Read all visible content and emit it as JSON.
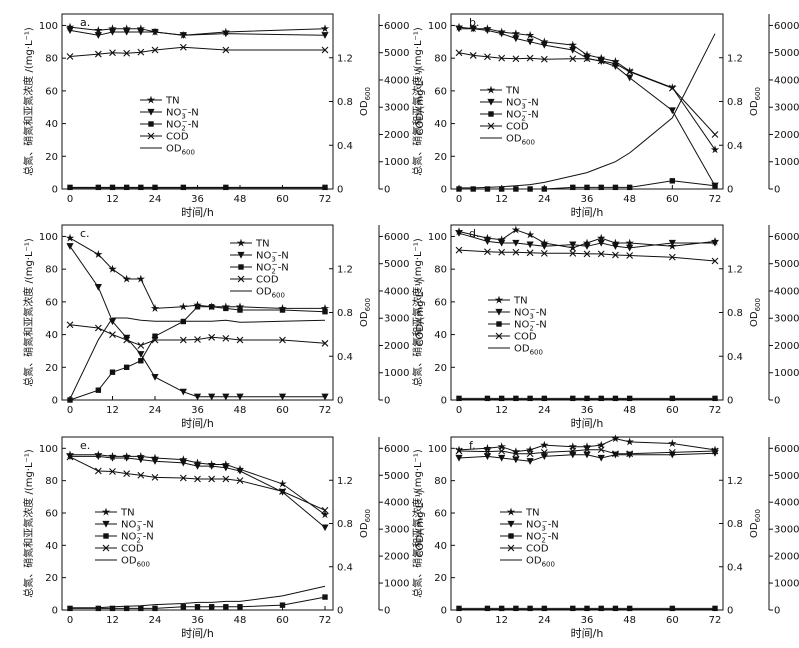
{
  "figure": {
    "shared": {
      "xlabel": "时间/h",
      "ylabel_left": "总氮、硝氮和亚氮浓度 /(mg·L⁻¹)",
      "ylabel_od": "OD600",
      "ylabel_cod": "COD/(mg·L⁻¹)",
      "x_ticks": [
        0,
        12,
        24,
        36,
        48,
        60,
        72
      ],
      "y_left_ticks": [
        0,
        20,
        40,
        60,
        80,
        100
      ],
      "y_od_ticks": [
        0,
        0.4,
        0.8,
        1.2
      ],
      "y_cod_ticks": [
        0,
        1000,
        2000,
        3000,
        4000,
        5000,
        6000
      ],
      "legend": [
        "TN",
        "NO3−-N",
        "NO2−-N",
        "COD",
        "OD600"
      ]
    },
    "colors": {
      "line": "#111111",
      "axis": "#111111",
      "background": "#ffffff"
    }
  },
  "chart_data": [
    {
      "panel": "a.",
      "type": "line",
      "xlim": [
        0,
        72
      ],
      "ylim": [
        0,
        100
      ],
      "od_lim": [
        0,
        1.5
      ],
      "cod_lim": [
        0,
        6000
      ],
      "series": [
        {
          "name": "TN",
          "axis": "left",
          "marker": "star",
          "x": [
            0,
            8,
            12,
            16,
            20,
            24,
            32,
            44,
            72
          ],
          "y": [
            99,
            97,
            98,
            98,
            98,
            96,
            94,
            96,
            98
          ]
        },
        {
          "name": "NO3−-N",
          "axis": "left",
          "marker": "tri-down",
          "x": [
            0,
            8,
            12,
            16,
            20,
            24,
            32,
            44,
            72
          ],
          "y": [
            97,
            94,
            96,
            96,
            96,
            96,
            94,
            95,
            94
          ]
        },
        {
          "name": "NO2−-N",
          "axis": "left",
          "marker": "square",
          "x": [
            0,
            8,
            12,
            16,
            20,
            24,
            32,
            44,
            72
          ],
          "y": [
            1,
            1,
            1,
            1,
            1,
            1,
            1,
            1,
            1
          ]
        },
        {
          "name": "COD",
          "axis": "cod",
          "marker": "x",
          "x": [
            0,
            8,
            12,
            16,
            20,
            24,
            32,
            44,
            72
          ],
          "y": [
            4860,
            4950,
            5000,
            4980,
            5020,
            5100,
            5200,
            5100,
            5100
          ]
        },
        {
          "name": "OD600",
          "axis": "od",
          "marker": "none",
          "x": [
            0,
            8,
            12,
            16,
            20,
            24,
            32,
            44,
            72
          ],
          "y": [
            0.01,
            0.01,
            0.01,
            0.01,
            0.01,
            0.01,
            0.01,
            0.01,
            0.01
          ]
        }
      ]
    },
    {
      "panel": "b.",
      "type": "line",
      "xlim": [
        0,
        72
      ],
      "ylim": [
        0,
        100
      ],
      "od_lim": [
        0,
        1.5
      ],
      "cod_lim": [
        0,
        6000
      ],
      "series": [
        {
          "name": "TN",
          "axis": "left",
          "marker": "star",
          "x": [
            0,
            4,
            8,
            12,
            16,
            20,
            24,
            32,
            36,
            40,
            44,
            48,
            60,
            72
          ],
          "y": [
            99,
            98,
            98,
            96,
            95,
            94,
            90,
            88,
            82,
            80,
            78,
            72,
            62,
            24
          ]
        },
        {
          "name": "NO3−-N",
          "axis": "left",
          "marker": "tri-down",
          "x": [
            0,
            4,
            8,
            12,
            16,
            20,
            24,
            32,
            36,
            40,
            44,
            48,
            60,
            72
          ],
          "y": [
            98,
            98,
            97,
            95,
            92,
            90,
            88,
            85,
            80,
            78,
            75,
            68,
            48,
            2
          ]
        },
        {
          "name": "NO2−-N",
          "axis": "left",
          "marker": "square",
          "x": [
            0,
            4,
            8,
            12,
            16,
            20,
            24,
            32,
            36,
            40,
            44,
            48,
            60,
            72
          ],
          "y": [
            0,
            0,
            0,
            0,
            0,
            0,
            0,
            1,
            1,
            1,
            1,
            1,
            5,
            2
          ]
        },
        {
          "name": "COD",
          "axis": "cod",
          "marker": "x",
          "x": [
            0,
            4,
            8,
            12,
            16,
            20,
            24,
            32,
            36,
            40,
            44,
            48,
            60,
            72
          ],
          "y": [
            5000,
            4900,
            4850,
            4800,
            4780,
            4800,
            4760,
            4780,
            4780,
            4700,
            4600,
            4300,
            3700,
            2000
          ]
        },
        {
          "name": "OD600",
          "axis": "od",
          "marker": "none",
          "x": [
            0,
            4,
            8,
            12,
            16,
            20,
            24,
            32,
            36,
            40,
            44,
            48,
            60,
            72
          ],
          "y": [
            0.01,
            0.01,
            0.015,
            0.02,
            0.03,
            0.04,
            0.06,
            0.12,
            0.15,
            0.2,
            0.25,
            0.33,
            0.65,
            1.42
          ]
        }
      ]
    },
    {
      "panel": "c.",
      "type": "line",
      "xlim": [
        0,
        72
      ],
      "ylim": [
        0,
        100
      ],
      "od_lim": [
        0,
        1.5
      ],
      "cod_lim": [
        0,
        6000
      ],
      "series": [
        {
          "name": "TN",
          "axis": "left",
          "marker": "star",
          "x": [
            0,
            8,
            12,
            16,
            20,
            24,
            32,
            36,
            40,
            44,
            48,
            60,
            72
          ],
          "y": [
            99,
            89,
            80,
            74,
            74,
            56,
            57,
            58,
            57,
            57,
            57,
            56,
            56
          ]
        },
        {
          "name": "NO3−-N",
          "axis": "left",
          "marker": "tri-down",
          "x": [
            0,
            8,
            12,
            16,
            20,
            24,
            32,
            36,
            40,
            44,
            48,
            60,
            72
          ],
          "y": [
            94,
            69,
            48,
            38,
            28,
            14,
            5,
            2,
            2,
            2,
            2,
            2,
            2
          ]
        },
        {
          "name": "NO2−-N",
          "axis": "left",
          "marker": "square",
          "x": [
            0,
            8,
            12,
            16,
            20,
            24,
            32,
            36,
            40,
            44,
            48,
            60,
            72
          ],
          "y": [
            0,
            6,
            17,
            20,
            24,
            39,
            48,
            57,
            57,
            56,
            55,
            55,
            54
          ]
        },
        {
          "name": "COD",
          "axis": "cod",
          "marker": "x",
          "x": [
            0,
            8,
            12,
            16,
            20,
            24,
            32,
            36,
            40,
            44,
            48,
            60,
            72
          ],
          "y": [
            2760,
            2640,
            2400,
            2200,
            2000,
            2200,
            2200,
            2220,
            2300,
            2260,
            2200,
            2200,
            2080
          ]
        },
        {
          "name": "OD600",
          "axis": "od",
          "marker": "none",
          "x": [
            0,
            8,
            12,
            16,
            20,
            24,
            32,
            36,
            40,
            44,
            48,
            60,
            72
          ],
          "y": [
            0.01,
            0.55,
            0.75,
            0.75,
            0.73,
            0.72,
            0.72,
            0.72,
            0.72,
            0.73,
            0.71,
            0.72,
            0.73
          ]
        }
      ]
    },
    {
      "panel": "d.",
      "type": "line",
      "xlim": [
        0,
        72
      ],
      "ylim": [
        0,
        100
      ],
      "od_lim": [
        0,
        1.5
      ],
      "cod_lim": [
        0,
        6000
      ],
      "series": [
        {
          "name": "TN",
          "axis": "left",
          "marker": "star",
          "x": [
            0,
            8,
            12,
            16,
            20,
            24,
            32,
            36,
            40,
            44,
            48,
            60,
            72
          ],
          "y": [
            103,
            99,
            98,
            104,
            101,
            96,
            93,
            96,
            99,
            96,
            96,
            94,
            97
          ]
        },
        {
          "name": "NO3−-N",
          "axis": "left",
          "marker": "tri-down",
          "x": [
            0,
            8,
            12,
            16,
            20,
            24,
            32,
            36,
            40,
            44,
            48,
            60,
            72
          ],
          "y": [
            102,
            97,
            96,
            96,
            95,
            94,
            95,
            94,
            96,
            94,
            93,
            96,
            96
          ]
        },
        {
          "name": "NO2−-N",
          "axis": "left",
          "marker": "square",
          "x": [
            0,
            8,
            12,
            16,
            20,
            24,
            32,
            36,
            40,
            44,
            48,
            60,
            72
          ],
          "y": [
            1,
            1,
            1,
            1,
            1,
            1,
            1,
            1,
            1,
            1,
            1,
            1,
            1
          ]
        },
        {
          "name": "COD",
          "axis": "cod",
          "marker": "x",
          "x": [
            0,
            8,
            12,
            16,
            20,
            24,
            32,
            36,
            40,
            44,
            48,
            60,
            72
          ],
          "y": [
            5500,
            5440,
            5420,
            5420,
            5400,
            5380,
            5380,
            5360,
            5360,
            5320,
            5300,
            5240,
            5100
          ]
        },
        {
          "name": "OD600",
          "axis": "od",
          "marker": "none",
          "x": [
            0,
            8,
            12,
            16,
            20,
            24,
            32,
            36,
            40,
            44,
            48,
            60,
            72
          ],
          "y": [
            0.005,
            0.005,
            0.005,
            0.005,
            0.005,
            0.005,
            0.005,
            0.005,
            0.005,
            0.005,
            0.005,
            0.005,
            0.005
          ]
        }
      ]
    },
    {
      "panel": "e.",
      "type": "line",
      "xlim": [
        0,
        72
      ],
      "ylim": [
        0,
        100
      ],
      "od_lim": [
        0,
        1.5
      ],
      "cod_lim": [
        0,
        6000
      ],
      "series": [
        {
          "name": "TN",
          "axis": "left",
          "marker": "star",
          "x": [
            0,
            8,
            12,
            16,
            20,
            24,
            32,
            36,
            40,
            44,
            48,
            60,
            72
          ],
          "y": [
            96,
            96,
            95,
            95,
            95,
            94,
            93,
            91,
            90,
            90,
            87,
            78,
            59
          ]
        },
        {
          "name": "NO3−-N",
          "axis": "left",
          "marker": "tri-down",
          "x": [
            0,
            8,
            12,
            16,
            20,
            24,
            32,
            36,
            40,
            44,
            48,
            60,
            72
          ],
          "y": [
            95,
            95,
            94,
            94,
            93,
            92,
            91,
            89,
            89,
            88,
            86,
            73,
            51
          ]
        },
        {
          "name": "NO2−-N",
          "axis": "left",
          "marker": "square",
          "x": [
            0,
            8,
            12,
            16,
            20,
            24,
            32,
            36,
            40,
            44,
            48,
            60,
            72
          ],
          "y": [
            1,
            1,
            1,
            1,
            1,
            1,
            2,
            2,
            2,
            2,
            2,
            3,
            8
          ]
        },
        {
          "name": "COD",
          "axis": "cod",
          "marker": "x",
          "x": [
            0,
            8,
            12,
            16,
            20,
            24,
            32,
            36,
            40,
            44,
            48,
            60,
            72
          ],
          "y": [
            5680,
            5160,
            5140,
            5060,
            5000,
            4920,
            4900,
            4860,
            4860,
            4860,
            4800,
            4400,
            3700
          ]
        },
        {
          "name": "OD600",
          "axis": "od",
          "marker": "none",
          "x": [
            0,
            8,
            12,
            16,
            20,
            24,
            32,
            36,
            40,
            44,
            48,
            60,
            72
          ],
          "y": [
            0.02,
            0.02,
            0.03,
            0.035,
            0.04,
            0.05,
            0.06,
            0.07,
            0.07,
            0.08,
            0.08,
            0.13,
            0.22
          ]
        }
      ]
    },
    {
      "panel": "f.",
      "type": "line",
      "xlim": [
        0,
        72
      ],
      "ylim": [
        0,
        100
      ],
      "od_lim": [
        0,
        1.5
      ],
      "cod_lim": [
        0,
        6000
      ],
      "series": [
        {
          "name": "TN",
          "axis": "left",
          "marker": "star",
          "x": [
            0,
            8,
            12,
            16,
            20,
            24,
            32,
            36,
            40,
            44,
            48,
            60,
            72
          ],
          "y": [
            99,
            100,
            101,
            98,
            99,
            102,
            101,
            101,
            102,
            106,
            104,
            103,
            99
          ]
        },
        {
          "name": "NO3−-N",
          "axis": "left",
          "marker": "tri-down",
          "x": [
            0,
            8,
            12,
            16,
            20,
            24,
            32,
            36,
            40,
            44,
            48,
            60,
            72
          ],
          "y": [
            94,
            95,
            94,
            93,
            92,
            95,
            96,
            96,
            94,
            96,
            96,
            96,
            97
          ]
        },
        {
          "name": "NO2−-N",
          "axis": "left",
          "marker": "square",
          "x": [
            0,
            8,
            12,
            16,
            20,
            24,
            32,
            36,
            40,
            44,
            48,
            60,
            72
          ],
          "y": [
            1,
            1,
            1,
            1,
            1,
            1,
            1,
            1,
            1,
            1,
            1,
            1,
            1
          ]
        },
        {
          "name": "COD",
          "axis": "cod",
          "marker": "x",
          "x": [
            0,
            8,
            12,
            16,
            20,
            24,
            32,
            36,
            40,
            44,
            48,
            60,
            72
          ],
          "y": [
            5900,
            5880,
            5900,
            5800,
            5800,
            5850,
            5900,
            5950,
            5950,
            5800,
            5800,
            5850,
            5900
          ]
        },
        {
          "name": "OD600",
          "axis": "od",
          "marker": "none",
          "x": [
            0,
            8,
            12,
            16,
            20,
            24,
            32,
            36,
            40,
            44,
            48,
            60,
            72
          ],
          "y": [
            0.005,
            0.005,
            0.005,
            0.005,
            0.005,
            0.005,
            0.005,
            0.005,
            0.005,
            0.005,
            0.005,
            0.005,
            0.005
          ]
        }
      ]
    }
  ]
}
